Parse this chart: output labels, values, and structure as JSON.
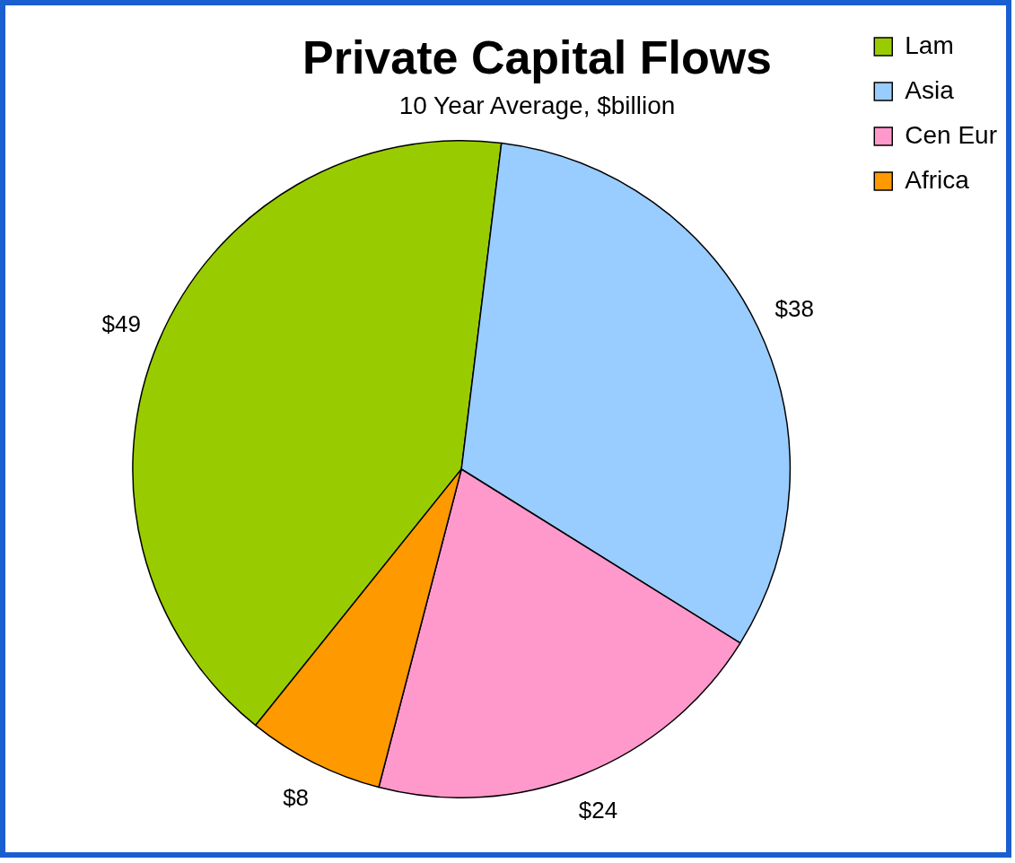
{
  "chart_data": {
    "type": "pie",
    "title": "Private Capital Flows",
    "subtitle": "10 Year Average, $billion",
    "categories": [
      "Lam",
      "Asia",
      "Cen Eur",
      "Africa"
    ],
    "values": [
      49,
      38,
      24,
      8
    ],
    "colors": [
      "#99cc00",
      "#99ccff",
      "#ff99cc",
      "#ff9900"
    ],
    "value_labels": [
      "$49",
      "$38",
      "$24",
      "$8"
    ],
    "legend": "top right"
  }
}
